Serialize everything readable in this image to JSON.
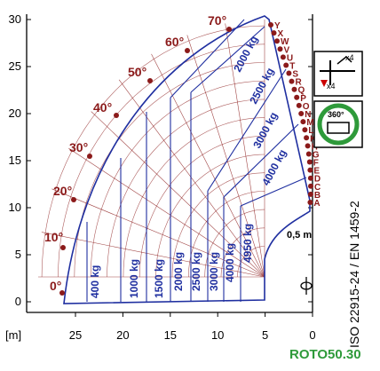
{
  "diagram": {
    "unit_label": "[m]",
    "x_ticks": [
      "25",
      "20",
      "15",
      "10",
      "5",
      "0"
    ],
    "y_ticks": [
      "0",
      "5",
      "10",
      "15",
      "20",
      "25",
      "30"
    ],
    "small_label": "0,5 m",
    "angles": [
      "0°",
      "10°",
      "20°",
      "30°",
      "40°",
      "50°",
      "60°",
      "70°"
    ],
    "tip_points": [
      "Y",
      "X",
      "W",
      "V",
      "U",
      "T",
      "S",
      "R",
      "Q",
      "P",
      "O",
      "N",
      "M",
      "L",
      "K",
      "H",
      "G",
      "F",
      "E",
      "D",
      "C",
      "B",
      "A"
    ],
    "horizontal_loads": [
      "400 kg",
      "1000 kg",
      "1500 kg",
      "2000 kg",
      "2500 kg",
      "3000 kg",
      "4000 kg",
      "4950 kg"
    ],
    "diagonal_loads": [
      "2000 kg",
      "2500 kg",
      "3000 kg",
      "4000 kg"
    ],
    "standard": "ISO 22915-24 / EN 1459-2",
    "model": "ROTO50.30",
    "icons": {
      "stabilizers": {
        "name": "stabilizers-icon",
        "labels": [
          "x4",
          "x4"
        ]
      },
      "rotation": {
        "name": "rotation-360-icon",
        "label": "360°"
      }
    },
    "colors": {
      "loadline": "#1f2fa0",
      "grid": "#8b1a1a",
      "model": "#2e9a3a"
    }
  }
}
